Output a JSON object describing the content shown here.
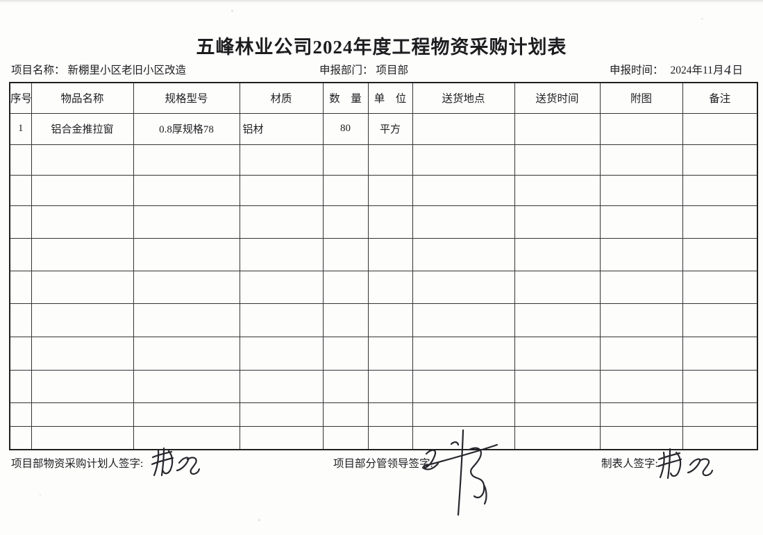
{
  "page": {
    "title": "五峰林业公司2024年度工程物资采购计划表"
  },
  "meta": {
    "project": {
      "label": "项目名称：",
      "value": "新棚里小区老旧小区改造"
    },
    "department": {
      "label": "申报部门：",
      "value": "项目部"
    },
    "report_time": {
      "label": "申报时间：",
      "year_month": "2024年11月",
      "day": "4",
      "day_suffix": "日"
    }
  },
  "table": {
    "headers": [
      "序号",
      "物品名称",
      "规格型号",
      "材质",
      "数　量",
      "单　位",
      "送货地点",
      "送货时间",
      "附图",
      "备注"
    ],
    "rows": [
      [
        "1",
        "铝合金推拉窗",
        "0.8厚规格78",
        "铝材",
        "80",
        "平方",
        "",
        "",
        "",
        ""
      ],
      [
        "",
        "",
        "",
        "",
        "",
        "",
        "",
        "",
        "",
        ""
      ],
      [
        "",
        "",
        "",
        "",
        "",
        "",
        "",
        "",
        "",
        ""
      ],
      [
        "",
        "",
        "",
        "",
        "",
        "",
        "",
        "",
        "",
        ""
      ],
      [
        "",
        "",
        "",
        "",
        "",
        "",
        "",
        "",
        "",
        ""
      ],
      [
        "",
        "",
        "",
        "",
        "",
        "",
        "",
        "",
        "",
        ""
      ],
      [
        "",
        "",
        "",
        "",
        "",
        "",
        "",
        "",
        "",
        ""
      ],
      [
        "",
        "",
        "",
        "",
        "",
        "",
        "",
        "",
        "",
        ""
      ],
      [
        "",
        "",
        "",
        "",
        "",
        "",
        "",
        "",
        "",
        ""
      ],
      [
        "",
        "",
        "",
        "",
        "",
        "",
        "",
        "",
        "",
        ""
      ],
      [
        "",
        "",
        "",
        "",
        "",
        "",
        "",
        "",
        "",
        ""
      ]
    ]
  },
  "footer": {
    "planner_sign_label": "项目部物资采购计划人签字:",
    "leader_sign_label": "项目部分管领导签字:",
    "tabulator_sign_label": "制表人签字:"
  },
  "colors": {
    "ink": "#1d1d20",
    "grid_line": "#333335",
    "signature_ink": "#26262d",
    "paper": "#fdfdfc"
  }
}
